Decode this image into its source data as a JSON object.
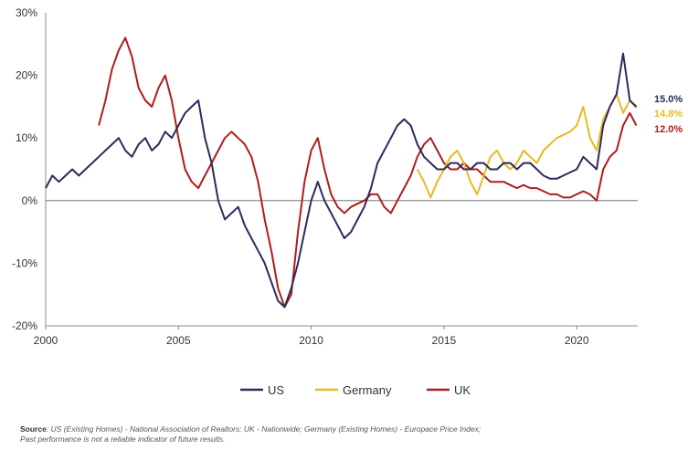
{
  "chart_data": {
    "type": "line",
    "x_unit": "year",
    "xlim": [
      2000,
      2022.3
    ],
    "ylim": [
      -20,
      30
    ],
    "x_ticks": [
      "2000",
      "2005",
      "2010",
      "2015",
      "2020"
    ],
    "y_ticks": [
      "-20%",
      "-10%",
      "0%",
      "10%",
      "20%",
      "30%"
    ],
    "grid": false,
    "legend_position": "bottom",
    "colors": {
      "US": "#2e2a5c",
      "Germany": "#e8b923",
      "UK": "#b01c1c"
    },
    "series": [
      {
        "name": "US",
        "end_label": "15.0%",
        "x": [
          2000.0,
          2000.25,
          2000.5,
          2000.75,
          2001.0,
          2001.25,
          2001.5,
          2001.75,
          2002.0,
          2002.25,
          2002.5,
          2002.75,
          2003.0,
          2003.25,
          2003.5,
          2003.75,
          2004.0,
          2004.25,
          2004.5,
          2004.75,
          2005.0,
          2005.25,
          2005.5,
          2005.75,
          2006.0,
          2006.25,
          2006.5,
          2006.75,
          2007.0,
          2007.25,
          2007.5,
          2007.75,
          2008.0,
          2008.25,
          2008.5,
          2008.75,
          2009.0,
          2009.25,
          2009.5,
          2009.75,
          2010.0,
          2010.25,
          2010.5,
          2010.75,
          2011.0,
          2011.25,
          2011.5,
          2011.75,
          2012.0,
          2012.25,
          2012.5,
          2012.75,
          2013.0,
          2013.25,
          2013.5,
          2013.75,
          2014.0,
          2014.25,
          2014.5,
          2014.75,
          2015.0,
          2015.25,
          2015.5,
          2015.75,
          2016.0,
          2016.25,
          2016.5,
          2016.75,
          2017.0,
          2017.25,
          2017.5,
          2017.75,
          2018.0,
          2018.25,
          2018.5,
          2018.75,
          2019.0,
          2019.25,
          2019.5,
          2019.75,
          2020.0,
          2020.25,
          2020.5,
          2020.75,
          2021.0,
          2021.25,
          2021.5,
          2021.75,
          2022.0,
          2022.25
        ],
        "y": [
          2,
          4,
          3,
          4,
          5,
          4,
          5,
          6,
          7,
          8,
          9,
          10,
          8,
          7,
          9,
          10,
          8,
          9,
          11,
          10,
          12,
          14,
          15,
          16,
          10,
          6,
          0,
          -3,
          -2,
          -1,
          -4,
          -6,
          -8,
          -10,
          -13,
          -16,
          -17,
          -14,
          -10,
          -5,
          0,
          3,
          0,
          -2,
          -4,
          -6,
          -5,
          -3,
          -1,
          2,
          6,
          8,
          10,
          12,
          13,
          12,
          9,
          7,
          6,
          5,
          5,
          6,
          6,
          5,
          5,
          6,
          6,
          5,
          5,
          6,
          6,
          5,
          6,
          6,
          5,
          4,
          3.5,
          3.5,
          4,
          4.5,
          5,
          7,
          6,
          5,
          12,
          15,
          17,
          23.5,
          16,
          15
        ]
      },
      {
        "name": "Germany",
        "end_label": "14.8%",
        "x": [
          2014.0,
          2014.25,
          2014.5,
          2014.75,
          2015.0,
          2015.25,
          2015.5,
          2015.75,
          2016.0,
          2016.25,
          2016.5,
          2016.75,
          2017.0,
          2017.25,
          2017.5,
          2017.75,
          2018.0,
          2018.25,
          2018.5,
          2018.75,
          2019.0,
          2019.25,
          2019.5,
          2019.75,
          2020.0,
          2020.25,
          2020.5,
          2020.75,
          2021.0,
          2021.25,
          2021.5,
          2021.75,
          2022.0,
          2022.25
        ],
        "y": [
          5,
          3,
          0.5,
          3,
          5,
          7,
          8,
          6,
          3,
          1,
          4,
          7,
          8,
          6,
          5,
          6,
          8,
          7,
          6,
          8,
          9,
          10,
          10.5,
          11,
          12,
          15,
          10,
          8,
          13,
          15,
          17,
          14,
          16,
          14.8
        ]
      },
      {
        "name": "UK",
        "end_label": "12.0%",
        "x": [
          2002.0,
          2002.25,
          2002.5,
          2002.75,
          2003.0,
          2003.25,
          2003.5,
          2003.75,
          2004.0,
          2004.25,
          2004.5,
          2004.75,
          2005.0,
          2005.25,
          2005.5,
          2005.75,
          2006.0,
          2006.25,
          2006.5,
          2006.75,
          2007.0,
          2007.25,
          2007.5,
          2007.75,
          2008.0,
          2008.25,
          2008.5,
          2008.75,
          2009.0,
          2009.25,
          2009.5,
          2009.75,
          2010.0,
          2010.25,
          2010.5,
          2010.75,
          2011.0,
          2011.25,
          2011.5,
          2011.75,
          2012.0,
          2012.25,
          2012.5,
          2012.75,
          2013.0,
          2013.25,
          2013.5,
          2013.75,
          2014.0,
          2014.25,
          2014.5,
          2014.75,
          2015.0,
          2015.25,
          2015.5,
          2015.75,
          2016.0,
          2016.25,
          2016.5,
          2016.75,
          2017.0,
          2017.25,
          2017.5,
          2017.75,
          2018.0,
          2018.25,
          2018.5,
          2018.75,
          2019.0,
          2019.25,
          2019.5,
          2019.75,
          2020.0,
          2020.25,
          2020.5,
          2020.75,
          2021.0,
          2021.25,
          2021.5,
          2021.75,
          2022.0,
          2022.25
        ],
        "y": [
          12,
          16,
          21,
          24,
          26,
          23,
          18,
          16,
          15,
          18,
          20,
          16,
          10,
          5,
          3,
          2,
          4,
          6,
          8,
          10,
          11,
          10,
          9,
          7,
          3,
          -3,
          -8,
          -14,
          -17,
          -15,
          -5,
          3,
          8,
          10,
          5,
          1,
          -1,
          -2,
          -1,
          -0.5,
          0,
          1,
          1,
          -1,
          -2,
          0,
          2,
          4,
          7,
          9,
          10,
          8,
          6,
          5,
          5,
          6,
          5,
          5,
          4,
          3,
          3,
          3,
          2.5,
          2,
          2.5,
          2,
          2,
          1.5,
          1,
          1,
          0.5,
          0.5,
          1,
          1.5,
          1,
          0,
          5,
          7,
          8,
          12,
          14,
          12
        ]
      }
    ]
  },
  "source": {
    "label": "Source",
    "text": ": US (Existing Homes)  - National Association of Realtors; UK - Nationwide; Germany  (Existing Homes)  - Europace Price Index;",
    "line2": "Past performance is not a reliable indicator of future results."
  }
}
